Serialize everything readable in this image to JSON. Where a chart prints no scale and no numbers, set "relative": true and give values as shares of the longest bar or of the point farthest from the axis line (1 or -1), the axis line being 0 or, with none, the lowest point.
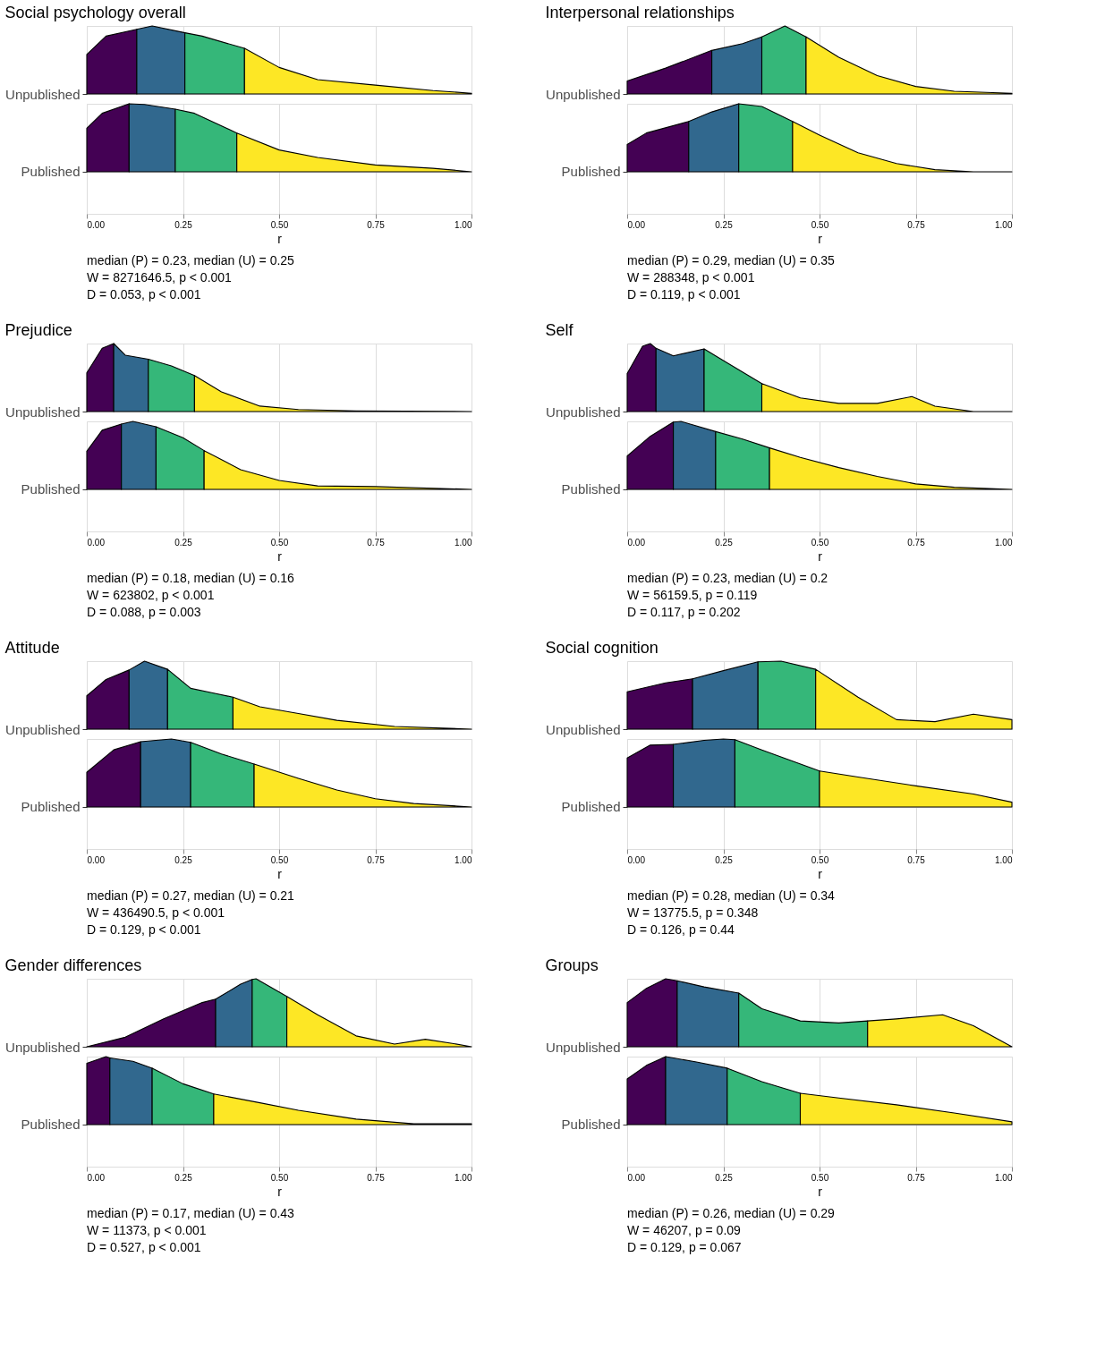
{
  "chart_data": [
    {
      "type": "area",
      "title": "Social psychology overall",
      "ylabel": "Unpublished",
      "relative": true,
      "grid": true,
      "tick_labels": false,
      "xlim": [
        0,
        1
      ],
      "xticks": [
        {
          "value": 0,
          "label": null
        },
        {
          "value": 0.25,
          "label": null
        },
        {
          "value": 0.5,
          "label": null
        },
        {
          "value": 0.75,
          "label": null
        },
        {
          "value": 1,
          "label": null
        }
      ],
      "series": [
        {
          "color": "#440154",
          "x": [
            0,
            0.05,
            0.13
          ],
          "values": [
            0.58,
            0.85,
            0.95
          ]
        },
        {
          "color": "#31688e",
          "x": [
            0.13,
            0.17,
            0.255
          ],
          "values": [
            0.95,
            1,
            0.9
          ]
        },
        {
          "color": "#35b779",
          "x": [
            0.255,
            0.3,
            0.41
          ],
          "values": [
            0.9,
            0.85,
            0.67
          ]
        },
        {
          "color": "#fde725",
          "x": [
            0.41,
            0.5,
            0.6,
            0.75,
            0.9,
            1.0
          ],
          "values": [
            0.67,
            0.39,
            0.21,
            0.13,
            0.05,
            0.01
          ]
        }
      ]
    },
    {
      "type": "area",
      "ylabel": "Published",
      "xlabel": "r",
      "relative": true,
      "grid": true,
      "tick_labels": "x",
      "xlim": [
        0,
        1
      ],
      "xticks": [
        {
          "value": 0,
          "label": "0.00"
        },
        {
          "value": 0.25,
          "label": "0.25"
        },
        {
          "value": 0.5,
          "label": "0.50"
        },
        {
          "value": 0.75,
          "label": "0.75"
        },
        {
          "value": 1,
          "label": "1.00"
        }
      ],
      "annotations": [
        "median (P) = 0.23, median (U) = 0.25",
        "W = 8271646.5, p < 0.001",
        "D = 0.053, p < 0.001"
      ],
      "series": [
        {
          "color": "#440154",
          "x": [
            0,
            0.04,
            0.11
          ],
          "values": [
            0.64,
            0.86,
            1
          ]
        },
        {
          "color": "#31688e",
          "x": [
            0.11,
            0.15,
            0.23
          ],
          "values": [
            1,
            0.99,
            0.92
          ]
        },
        {
          "color": "#35b779",
          "x": [
            0.23,
            0.28,
            0.39
          ],
          "values": [
            0.92,
            0.86,
            0.57
          ]
        },
        {
          "color": "#fde725",
          "x": [
            0.39,
            0.5,
            0.6,
            0.75,
            0.9,
            1
          ],
          "values": [
            0.57,
            0.32,
            0.21,
            0.1,
            0.05,
            0
          ]
        }
      ]
    },
    {
      "type": "area",
      "title": "Interpersonal relationships",
      "ylabel": "Unpublished",
      "relative": true,
      "grid": true,
      "tick_labels": false,
      "xlim": [
        0,
        1
      ],
      "xticks": [
        {
          "value": 0,
          "label": null
        },
        {
          "value": 0.25,
          "label": null
        },
        {
          "value": 0.5,
          "label": null
        },
        {
          "value": 0.75,
          "label": null
        },
        {
          "value": 1,
          "label": null
        }
      ],
      "series": [
        {
          "color": "#440154",
          "x": [
            0,
            0.1,
            0.22
          ],
          "values": [
            0.19,
            0.38,
            0.64
          ]
        },
        {
          "color": "#31688e",
          "x": [
            0.22,
            0.3,
            0.35
          ],
          "values": [
            0.64,
            0.74,
            0.84
          ]
        },
        {
          "color": "#35b779",
          "x": [
            0.35,
            0.41,
            0.465
          ],
          "values": [
            0.84,
            1,
            0.84
          ]
        },
        {
          "color": "#fde725",
          "x": [
            0.465,
            0.55,
            0.65,
            0.75,
            0.85,
            1
          ],
          "values": [
            0.84,
            0.54,
            0.27,
            0.11,
            0.04,
            0.01
          ]
        }
      ]
    },
    {
      "type": "area",
      "ylabel": "Published",
      "xlabel": "r",
      "relative": true,
      "grid": true,
      "tick_labels": "x",
      "xlim": [
        0,
        1
      ],
      "xticks": [
        {
          "value": 0,
          "label": "0.00"
        },
        {
          "value": 0.25,
          "label": "0.25"
        },
        {
          "value": 0.5,
          "label": "0.50"
        },
        {
          "value": 0.75,
          "label": "0.75"
        },
        {
          "value": 1,
          "label": "1.00"
        }
      ],
      "annotations": [
        "median (P) = 0.29, median (U) = 0.35",
        "W = 288348, p < 0.001",
        "D = 0.119, p < 0.001"
      ],
      "series": [
        {
          "color": "#440154",
          "x": [
            0,
            0.05,
            0.16
          ],
          "values": [
            0.4,
            0.57,
            0.74
          ]
        },
        {
          "color": "#31688e",
          "x": [
            0.16,
            0.22,
            0.29
          ],
          "values": [
            0.74,
            0.88,
            1
          ]
        },
        {
          "color": "#35b779",
          "x": [
            0.29,
            0.35,
            0.43
          ],
          "values": [
            1,
            0.96,
            0.74
          ]
        },
        {
          "color": "#fde725",
          "x": [
            0.43,
            0.5,
            0.6,
            0.7,
            0.8,
            0.9,
            1
          ],
          "values": [
            0.74,
            0.54,
            0.28,
            0.12,
            0.03,
            0,
            0
          ]
        }
      ]
    },
    {
      "type": "area",
      "title": "Prejudice",
      "ylabel": "Unpublished",
      "relative": true,
      "grid": true,
      "tick_labels": false,
      "xlim": [
        0,
        1
      ],
      "xticks": [
        {
          "value": 0,
          "label": null
        },
        {
          "value": 0.25,
          "label": null
        },
        {
          "value": 0.5,
          "label": null
        },
        {
          "value": 0.75,
          "label": null
        },
        {
          "value": 1,
          "label": null
        }
      ],
      "series": [
        {
          "color": "#440154",
          "x": [
            0,
            0.04,
            0.07
          ],
          "values": [
            0.57,
            0.93,
            1
          ]
        },
        {
          "color": "#31688e",
          "x": [
            0.07,
            0.1,
            0.16
          ],
          "values": [
            1,
            0.83,
            0.77
          ]
        },
        {
          "color": "#35b779",
          "x": [
            0.16,
            0.22,
            0.28
          ],
          "values": [
            0.77,
            0.67,
            0.53
          ]
        },
        {
          "color": "#fde725",
          "x": [
            0.28,
            0.35,
            0.45,
            0.55,
            0.7,
            1
          ],
          "values": [
            0.53,
            0.29,
            0.08,
            0.03,
            0.01,
            0
          ]
        }
      ]
    },
    {
      "type": "area",
      "ylabel": "Published",
      "xlabel": "r",
      "relative": true,
      "grid": true,
      "tick_labels": "x",
      "xlim": [
        0,
        1
      ],
      "xticks": [
        {
          "value": 0,
          "label": "0.00"
        },
        {
          "value": 0.25,
          "label": "0.25"
        },
        {
          "value": 0.5,
          "label": "0.50"
        },
        {
          "value": 0.75,
          "label": "0.75"
        },
        {
          "value": 1,
          "label": "1.00"
        }
      ],
      "annotations": [
        "median (P) = 0.18, median (U) = 0.16",
        "W = 623802, p < 0.001",
        "D = 0.088, p = 0.003"
      ],
      "series": [
        {
          "color": "#440154",
          "x": [
            0,
            0.04,
            0.09
          ],
          "values": [
            0.56,
            0.87,
            0.96
          ]
        },
        {
          "color": "#31688e",
          "x": [
            0.09,
            0.12,
            0.18
          ],
          "values": [
            0.96,
            1,
            0.92
          ]
        },
        {
          "color": "#35b779",
          "x": [
            0.18,
            0.25,
            0.305
          ],
          "values": [
            0.92,
            0.76,
            0.57
          ]
        },
        {
          "color": "#fde725",
          "x": [
            0.305,
            0.4,
            0.5,
            0.6,
            0.75,
            1
          ],
          "values": [
            0.57,
            0.29,
            0.13,
            0.05,
            0.04,
            0
          ]
        }
      ]
    },
    {
      "type": "area",
      "title": "Self",
      "ylabel": "Unpublished",
      "relative": true,
      "grid": true,
      "tick_labels": false,
      "xlim": [
        0,
        1
      ],
      "xticks": [
        {
          "value": 0,
          "label": null
        },
        {
          "value": 0.25,
          "label": null
        },
        {
          "value": 0.5,
          "label": null
        },
        {
          "value": 0.75,
          "label": null
        },
        {
          "value": 1,
          "label": null
        }
      ],
      "series": [
        {
          "color": "#440154",
          "x": [
            0,
            0.04,
            0.06,
            0.075
          ],
          "values": [
            0.56,
            0.96,
            1,
            0.93
          ]
        },
        {
          "color": "#31688e",
          "x": [
            0.075,
            0.12,
            0.2
          ],
          "values": [
            0.93,
            0.82,
            0.92
          ]
        },
        {
          "color": "#35b779",
          "x": [
            0.2,
            0.25,
            0.35
          ],
          "values": [
            0.92,
            0.75,
            0.41
          ]
        },
        {
          "color": "#fde725",
          "x": [
            0.35,
            0.45,
            0.55,
            0.65,
            0.74,
            0.8,
            0.9,
            1
          ],
          "values": [
            0.41,
            0.2,
            0.12,
            0.12,
            0.22,
            0.08,
            0,
            0
          ]
        }
      ]
    },
    {
      "type": "area",
      "ylabel": "Published",
      "xlabel": "r",
      "relative": true,
      "grid": true,
      "tick_labels": "x",
      "xlim": [
        0,
        1
      ],
      "xticks": [
        {
          "value": 0,
          "label": "0.00"
        },
        {
          "value": 0.25,
          "label": "0.25"
        },
        {
          "value": 0.5,
          "label": "0.50"
        },
        {
          "value": 0.75,
          "label": "0.75"
        },
        {
          "value": 1,
          "label": "1.00"
        }
      ],
      "annotations": [
        "median (P) = 0.23, median (U) = 0.2",
        "W = 56159.5, p = 0.119",
        "D = 0.117, p = 0.202"
      ],
      "series": [
        {
          "color": "#440154",
          "x": [
            0,
            0.06,
            0.12
          ],
          "values": [
            0.49,
            0.78,
            0.99
          ]
        },
        {
          "color": "#31688e",
          "x": [
            0.12,
            0.14,
            0.23
          ],
          "values": [
            0.99,
            1,
            0.85
          ]
        },
        {
          "color": "#35b779",
          "x": [
            0.23,
            0.3,
            0.37
          ],
          "values": [
            0.85,
            0.74,
            0.61
          ]
        },
        {
          "color": "#fde725",
          "x": [
            0.37,
            0.45,
            0.55,
            0.65,
            0.75,
            0.85,
            1
          ],
          "values": [
            0.61,
            0.47,
            0.32,
            0.19,
            0.08,
            0.03,
            0
          ]
        }
      ]
    },
    {
      "type": "area",
      "title": "Attitude",
      "ylabel": "Unpublished",
      "relative": true,
      "grid": true,
      "tick_labels": false,
      "xlim": [
        0,
        1
      ],
      "xticks": [
        {
          "value": 0,
          "label": null
        },
        {
          "value": 0.25,
          "label": null
        },
        {
          "value": 0.5,
          "label": null
        },
        {
          "value": 0.75,
          "label": null
        },
        {
          "value": 1,
          "label": null
        }
      ],
      "series": [
        {
          "color": "#440154",
          "x": [
            0,
            0.05,
            0.11
          ],
          "values": [
            0.49,
            0.73,
            0.87
          ]
        },
        {
          "color": "#31688e",
          "x": [
            0.11,
            0.15,
            0.21
          ],
          "values": [
            0.87,
            1,
            0.88
          ]
        },
        {
          "color": "#35b779",
          "x": [
            0.21,
            0.27,
            0.33,
            0.38
          ],
          "values": [
            0.88,
            0.6,
            0.53,
            0.47
          ]
        },
        {
          "color": "#fde725",
          "x": [
            0.38,
            0.45,
            0.55,
            0.65,
            0.8,
            1
          ],
          "values": [
            0.47,
            0.33,
            0.23,
            0.13,
            0.04,
            0
          ]
        }
      ]
    },
    {
      "type": "area",
      "ylabel": "Published",
      "xlabel": "r",
      "relative": true,
      "grid": true,
      "tick_labels": "x",
      "xlim": [
        0,
        1
      ],
      "xticks": [
        {
          "value": 0,
          "label": "0.00"
        },
        {
          "value": 0.25,
          "label": "0.25"
        },
        {
          "value": 0.5,
          "label": "0.50"
        },
        {
          "value": 0.75,
          "label": "0.75"
        },
        {
          "value": 1,
          "label": "1.00"
        }
      ],
      "annotations": [
        "median (P) = 0.27, median (U) = 0.21",
        "W = 436490.5, p < 0.001",
        "D = 0.129, p < 0.001"
      ],
      "series": [
        {
          "color": "#440154",
          "x": [
            0,
            0.07,
            0.14
          ],
          "values": [
            0.51,
            0.84,
            0.96
          ]
        },
        {
          "color": "#31688e",
          "x": [
            0.14,
            0.22,
            0.27
          ],
          "values": [
            0.96,
            1,
            0.95
          ]
        },
        {
          "color": "#35b779",
          "x": [
            0.27,
            0.35,
            0.435
          ],
          "values": [
            0.95,
            0.78,
            0.63
          ]
        },
        {
          "color": "#fde725",
          "x": [
            0.435,
            0.55,
            0.65,
            0.75,
            0.85,
            1
          ],
          "values": [
            0.63,
            0.42,
            0.25,
            0.12,
            0.05,
            0
          ]
        }
      ]
    },
    {
      "type": "area",
      "title": "Social cognition",
      "ylabel": "Unpublished",
      "relative": true,
      "grid": true,
      "tick_labels": false,
      "xlim": [
        0,
        1
      ],
      "xticks": [
        {
          "value": 0,
          "label": null
        },
        {
          "value": 0.25,
          "label": null
        },
        {
          "value": 0.5,
          "label": null
        },
        {
          "value": 0.75,
          "label": null
        },
        {
          "value": 1,
          "label": null
        }
      ],
      "series": [
        {
          "color": "#440154",
          "x": [
            0,
            0.1,
            0.17
          ],
          "values": [
            0.55,
            0.68,
            0.74
          ]
        },
        {
          "color": "#31688e",
          "x": [
            0.17,
            0.25,
            0.34
          ],
          "values": [
            0.74,
            0.86,
            0.99
          ]
        },
        {
          "color": "#35b779",
          "x": [
            0.34,
            0.4,
            0.49
          ],
          "values": [
            0.99,
            1,
            0.88
          ]
        },
        {
          "color": "#fde725",
          "x": [
            0.49,
            0.6,
            0.7,
            0.8,
            0.9,
            1
          ],
          "values": [
            0.88,
            0.47,
            0.14,
            0.11,
            0.22,
            0.14
          ]
        }
      ]
    },
    {
      "type": "area",
      "ylabel": "Published",
      "xlabel": "r",
      "relative": true,
      "grid": true,
      "tick_labels": "x",
      "xlim": [
        0,
        1
      ],
      "xticks": [
        {
          "value": 0,
          "label": "0.00"
        },
        {
          "value": 0.25,
          "label": "0.25"
        },
        {
          "value": 0.5,
          "label": "0.50"
        },
        {
          "value": 0.75,
          "label": "0.75"
        },
        {
          "value": 1,
          "label": "1.00"
        }
      ],
      "annotations": [
        "median (P) = 0.28, median (U) = 0.34",
        "W = 13775.5, p = 0.348",
        "D = 0.126, p = 0.44"
      ],
      "series": [
        {
          "color": "#440154",
          "x": [
            0,
            0.06,
            0.12
          ],
          "values": [
            0.72,
            0.91,
            0.92
          ]
        },
        {
          "color": "#31688e",
          "x": [
            0.12,
            0.2,
            0.25,
            0.28
          ],
          "values": [
            0.92,
            0.98,
            1,
            0.99
          ]
        },
        {
          "color": "#35b779",
          "x": [
            0.28,
            0.35,
            0.5
          ],
          "values": [
            0.99,
            0.84,
            0.53
          ]
        },
        {
          "color": "#fde725",
          "x": [
            0.5,
            0.6,
            0.75,
            0.9,
            1
          ],
          "values": [
            0.53,
            0.44,
            0.31,
            0.19,
            0.07
          ]
        }
      ]
    },
    {
      "type": "area",
      "title": "Gender differences",
      "ylabel": "Unpublished",
      "relative": true,
      "grid": true,
      "tick_labels": false,
      "xlim": [
        0,
        1
      ],
      "xticks": [
        {
          "value": 0,
          "label": null
        },
        {
          "value": 0.25,
          "label": null
        },
        {
          "value": 0.5,
          "label": null
        },
        {
          "value": 0.75,
          "label": null
        },
        {
          "value": 1,
          "label": null
        }
      ],
      "series": [
        {
          "color": "#440154",
          "x": [
            0,
            0.1,
            0.2,
            0.3,
            0.335
          ],
          "values": [
            0,
            0.14,
            0.41,
            0.65,
            0.7
          ]
        },
        {
          "color": "#31688e",
          "x": [
            0.335,
            0.4,
            0.43
          ],
          "values": [
            0.7,
            0.92,
            0.99
          ]
        },
        {
          "color": "#35b779",
          "x": [
            0.43,
            0.44,
            0.52
          ],
          "values": [
            0.99,
            1,
            0.74
          ]
        },
        {
          "color": "#fde725",
          "x": [
            0.52,
            0.6,
            0.7,
            0.8,
            0.88,
            0.95,
            1
          ],
          "values": [
            0.74,
            0.47,
            0.16,
            0.04,
            0.11,
            0.05,
            0
          ]
        }
      ]
    },
    {
      "type": "area",
      "ylabel": "Published",
      "xlabel": "r",
      "relative": true,
      "grid": true,
      "tick_labels": "x",
      "xlim": [
        0,
        1
      ],
      "xticks": [
        {
          "value": 0,
          "label": "0.00"
        },
        {
          "value": 0.25,
          "label": "0.25"
        },
        {
          "value": 0.5,
          "label": "0.50"
        },
        {
          "value": 0.75,
          "label": "0.75"
        },
        {
          "value": 1,
          "label": "1.00"
        }
      ],
      "annotations": [
        "median (P) = 0.17, median (U) = 0.43",
        "W = 11373, p < 0.001",
        "D = 0.527, p < 0.001"
      ],
      "series": [
        {
          "color": "#440154",
          "x": [
            0,
            0.05,
            0.06
          ],
          "values": [
            0.9,
            1,
            0.98
          ]
        },
        {
          "color": "#31688e",
          "x": [
            0.06,
            0.12,
            0.17
          ],
          "values": [
            0.98,
            0.93,
            0.83
          ]
        },
        {
          "color": "#35b779",
          "x": [
            0.17,
            0.25,
            0.33
          ],
          "values": [
            0.83,
            0.6,
            0.45
          ]
        },
        {
          "color": "#fde725",
          "x": [
            0.33,
            0.45,
            0.55,
            0.7,
            0.85,
            1
          ],
          "values": [
            0.45,
            0.32,
            0.21,
            0.08,
            0.01,
            0.01
          ]
        }
      ]
    },
    {
      "type": "area",
      "title": "Groups",
      "ylabel": "Unpublished",
      "relative": true,
      "grid": true,
      "tick_labels": false,
      "xlim": [
        0,
        1
      ],
      "xticks": [
        {
          "value": 0,
          "label": null
        },
        {
          "value": 0.25,
          "label": null
        },
        {
          "value": 0.5,
          "label": null
        },
        {
          "value": 0.75,
          "label": null
        },
        {
          "value": 1,
          "label": null
        }
      ],
      "series": [
        {
          "color": "#440154",
          "x": [
            0,
            0.05,
            0.1,
            0.13
          ],
          "values": [
            0.65,
            0.86,
            1,
            0.97
          ]
        },
        {
          "color": "#31688e",
          "x": [
            0.13,
            0.2,
            0.29
          ],
          "values": [
            0.97,
            0.88,
            0.79
          ]
        },
        {
          "color": "#35b779",
          "x": [
            0.29,
            0.35,
            0.45,
            0.55,
            0.625
          ],
          "values": [
            0.79,
            0.56,
            0.38,
            0.35,
            0.38
          ]
        },
        {
          "color": "#fde725",
          "x": [
            0.625,
            0.7,
            0.82,
            0.9,
            1
          ],
          "values": [
            0.38,
            0.41,
            0.47,
            0.31,
            0
          ]
        }
      ]
    },
    {
      "type": "area",
      "ylabel": "Published",
      "xlabel": "r",
      "relative": true,
      "grid": true,
      "tick_labels": "x",
      "xlim": [
        0,
        1
      ],
      "xticks": [
        {
          "value": 0,
          "label": "0.00"
        },
        {
          "value": 0.25,
          "label": "0.25"
        },
        {
          "value": 0.5,
          "label": "0.50"
        },
        {
          "value": 0.75,
          "label": "0.75"
        },
        {
          "value": 1,
          "label": "1.00"
        }
      ],
      "annotations": [
        "median (P) = 0.26, median (U) = 0.29",
        "W = 46207, p = 0.09",
        "D = 0.129, p = 0.067"
      ],
      "series": [
        {
          "color": "#440154",
          "x": [
            0,
            0.05,
            0.1
          ],
          "values": [
            0.67,
            0.87,
            1
          ]
        },
        {
          "color": "#31688e",
          "x": [
            0.1,
            0.18,
            0.26
          ],
          "values": [
            1,
            0.92,
            0.83
          ]
        },
        {
          "color": "#35b779",
          "x": [
            0.26,
            0.35,
            0.45
          ],
          "values": [
            0.83,
            0.63,
            0.46
          ]
        },
        {
          "color": "#fde725",
          "x": [
            0.45,
            0.55,
            0.7,
            0.85,
            1
          ],
          "values": [
            0.46,
            0.39,
            0.29,
            0.17,
            0.04
          ]
        }
      ]
    }
  ]
}
